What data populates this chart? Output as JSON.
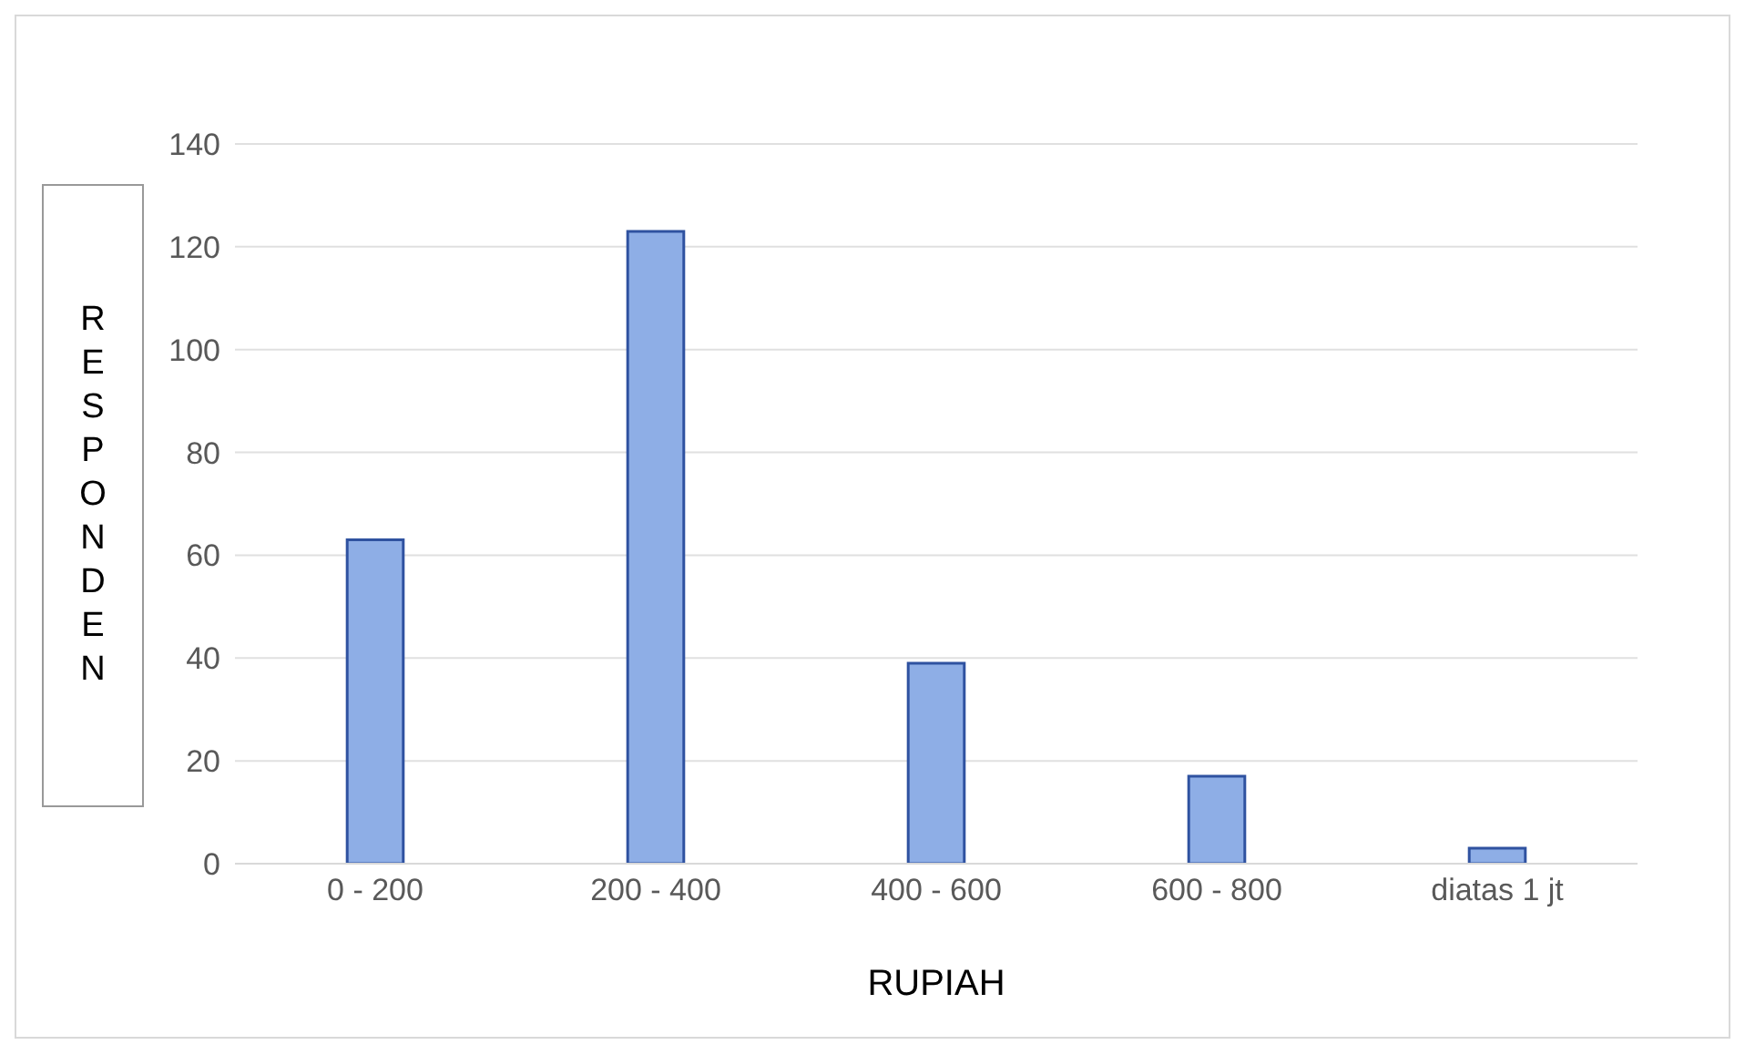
{
  "chart_data": {
    "type": "bar",
    "categories": [
      "0 - 200",
      "200 - 400",
      "400 - 600",
      "600 - 800",
      "diatas 1 jt"
    ],
    "values": [
      63,
      123,
      39,
      17,
      3
    ],
    "color": "#8eaee6",
    "ylim": [
      0,
      140
    ],
    "yticks": [
      0,
      20,
      40,
      60,
      80,
      100,
      120,
      140
    ],
    "grid": "y",
    "xlabel": "RUPIAH",
    "ylabel": "RESPONDEN"
  }
}
